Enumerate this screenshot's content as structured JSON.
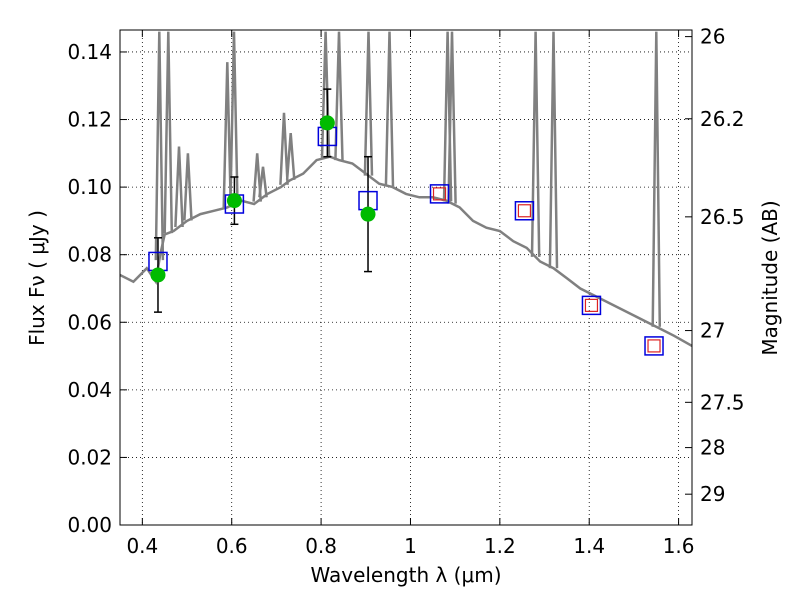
{
  "chart_data": {
    "type": "scatter",
    "title": "",
    "xlabel": "Wavelength  λ (μm)",
    "ylabel": "Flux  Fν  ( μJy )",
    "ylabel_right": "Magnitude (AB)",
    "xlim": [
      0.35,
      1.63
    ],
    "ylim": [
      0.0,
      0.1465
    ],
    "grid": true,
    "x_ticks": [
      0.4,
      0.6,
      0.8,
      1.0,
      1.2,
      1.4,
      1.6
    ],
    "x_tick_labels": [
      "0.4",
      "0.6",
      "0.8",
      "1",
      "1.2",
      "1.4",
      "1.6"
    ],
    "y_ticks": [
      0.0,
      0.02,
      0.04,
      0.06,
      0.08,
      0.1,
      0.12,
      0.14
    ],
    "y_tick_labels": [
      "0.00",
      "0.02",
      "0.04",
      "0.06",
      "0.08",
      "0.10",
      "0.12",
      "0.14"
    ],
    "right_ticks": [
      {
        "mag": 26,
        "label": "26"
      },
      {
        "mag": 26.2,
        "label": "26.2"
      },
      {
        "mag": 26.5,
        "label": "26.5"
      },
      {
        "mag": 27,
        "label": "27"
      },
      {
        "mag": 27.5,
        "label": "27.5"
      },
      {
        "mag": 28,
        "label": "28"
      },
      {
        "mag": 29,
        "label": "29"
      }
    ],
    "colors": {
      "model": "#808080",
      "observed": "#00bb00",
      "errorbar": "#000000",
      "model_band_box": "#0000dd",
      "predicted_box": "#dd2222"
    },
    "series": [
      {
        "name": "model SED",
        "kind": "line",
        "x": [
          0.35,
          0.38,
          0.41,
          0.43,
          0.44,
          0.45,
          0.47,
          0.5,
          0.53,
          0.56,
          0.59,
          0.62,
          0.65,
          0.68,
          0.71,
          0.73,
          0.76,
          0.79,
          0.82,
          0.84,
          0.87,
          0.9,
          0.93,
          0.96,
          0.99,
          1.02,
          1.05,
          1.08,
          1.11,
          1.14,
          1.17,
          1.2,
          1.23,
          1.26,
          1.29,
          1.32,
          1.35,
          1.38,
          1.41,
          1.44,
          1.47,
          1.5,
          1.53,
          1.56,
          1.59,
          1.63
        ],
        "y": [
          0.074,
          0.072,
          0.076,
          0.072,
          0.08,
          0.086,
          0.087,
          0.09,
          0.092,
          0.093,
          0.094,
          0.096,
          0.095,
          0.098,
          0.1,
          0.102,
          0.104,
          0.108,
          0.109,
          0.108,
          0.107,
          0.104,
          0.101,
          0.1,
          0.098,
          0.097,
          0.097,
          0.096,
          0.094,
          0.09,
          0.088,
          0.087,
          0.084,
          0.082,
          0.078,
          0.076,
          0.073,
          0.07,
          0.068,
          0.066,
          0.064,
          0.062,
          0.06,
          0.058,
          0.056,
          0.053
        ]
      },
      {
        "name": "emission lines",
        "kind": "spikes",
        "x": [
          0.438,
          0.458,
          0.482,
          0.502,
          0.59,
          0.605,
          0.657,
          0.67,
          0.717,
          0.732,
          0.81,
          0.84,
          0.906,
          0.953,
          1.083,
          1.093,
          1.28,
          1.32,
          1.55
        ],
        "y": [
          0.146,
          0.146,
          0.112,
          0.11,
          0.137,
          0.146,
          0.11,
          0.106,
          0.122,
          0.116,
          0.146,
          0.146,
          0.146,
          0.146,
          0.146,
          0.146,
          0.146,
          0.146,
          0.146
        ]
      },
      {
        "name": "model band flux",
        "kind": "boxes",
        "x": [
          0.435,
          0.606,
          0.814,
          0.905,
          1.065,
          1.255,
          1.405,
          1.545
        ],
        "y": [
          0.078,
          0.095,
          0.115,
          0.096,
          0.098,
          0.093,
          0.065,
          0.053
        ]
      },
      {
        "name": "predicted band flux",
        "kind": "boxes",
        "x": [
          1.065,
          1.255,
          1.405,
          1.545
        ],
        "y": [
          0.098,
          0.093,
          0.065,
          0.053
        ]
      },
      {
        "name": "observed flux",
        "kind": "points",
        "x": [
          0.435,
          0.606,
          0.814,
          0.905
        ],
        "y": [
          0.074,
          0.096,
          0.119,
          0.092
        ],
        "yerr": [
          0.011,
          0.007,
          0.01,
          0.017
        ]
      }
    ]
  }
}
